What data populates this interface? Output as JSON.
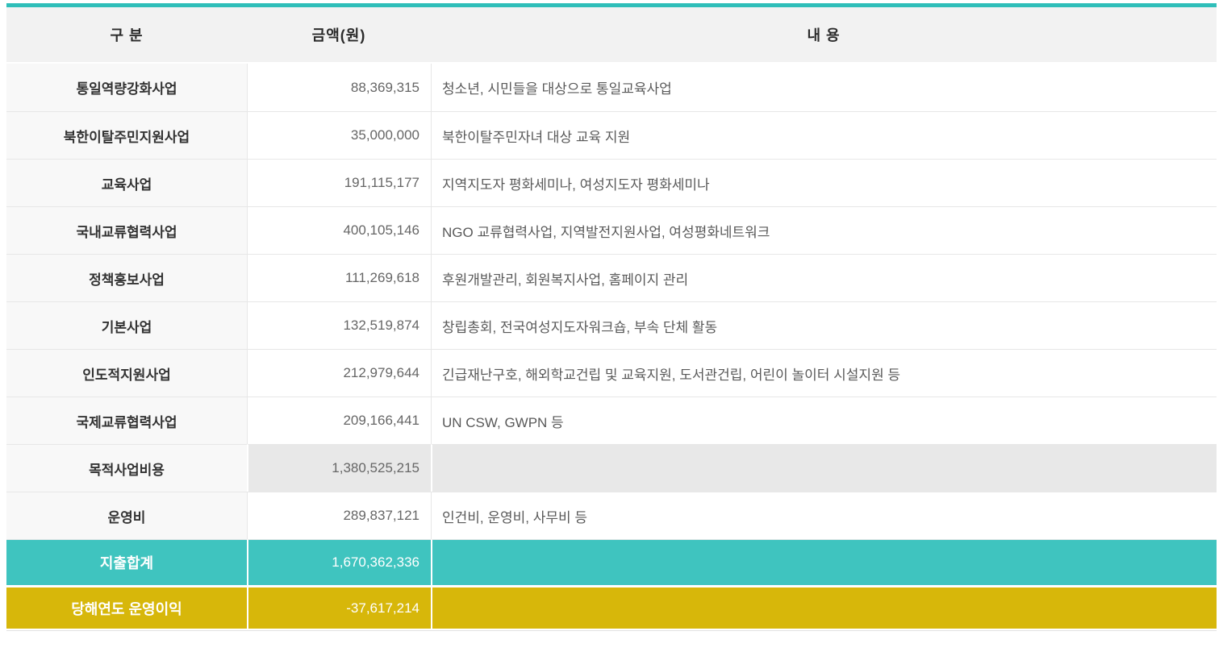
{
  "table": {
    "header": {
      "category": "구 분",
      "amount": "금액(원)",
      "description": "내 용"
    },
    "rows": [
      {
        "type": "normal",
        "category": "통일역량강화사업",
        "amount": "88,369,315",
        "description": "청소년, 시민들을 대상으로 통일교육사업"
      },
      {
        "type": "normal",
        "category": "북한이탈주민지원사업",
        "amount": "35,000,000",
        "description": "북한이탈주민자녀 대상 교육 지원"
      },
      {
        "type": "normal",
        "category": "교육사업",
        "amount": "191,115,177",
        "description": "지역지도자 평화세미나, 여성지도자 평화세미나"
      },
      {
        "type": "normal",
        "category": "국내교류협력사업",
        "amount": "400,105,146",
        "description": "NGO 교류협력사업, 지역발전지원사업, 여성평화네트워크"
      },
      {
        "type": "normal",
        "category": "정책홍보사업",
        "amount": "111,269,618",
        "description": "후원개발관리, 회원복지사업, 홈페이지 관리"
      },
      {
        "type": "normal",
        "category": "기본사업",
        "amount": "132,519,874",
        "description": "창립총회, 전국여성지도자워크숍, 부속 단체 활동"
      },
      {
        "type": "normal",
        "category": "인도적지원사업",
        "amount": "212,979,644",
        "description": "긴급재난구호, 해외학교건립 및 교육지원, 도서관건립, 어린이 놀이터 시설지원 등"
      },
      {
        "type": "normal",
        "category": "국제교류협력사업",
        "amount": "209,166,441",
        "description": "UN CSW, GWPN 등"
      },
      {
        "type": "subtotal",
        "category": "목적사업비용",
        "amount": "1,380,525,215",
        "description": ""
      },
      {
        "type": "normal",
        "category": "운영비",
        "amount": "289,837,121",
        "description": "인건비, 운영비, 사무비 등"
      },
      {
        "type": "total",
        "category": "지출합계",
        "amount": "1,670,362,336",
        "description": ""
      },
      {
        "type": "net",
        "category": "당해연도 운영이익",
        "amount": "-37,617,214",
        "description": ""
      }
    ],
    "colors": {
      "top_bar": "#2fbeb9",
      "total_row_bg": "#3fc4bf",
      "net_row_bg": "#d7b70a",
      "subtotal_cell_bg": "#e8e8e8",
      "header_bg": "#f2f2f2",
      "category_col_bg": "#f8f8f8",
      "border": "#e7e7e7"
    }
  }
}
